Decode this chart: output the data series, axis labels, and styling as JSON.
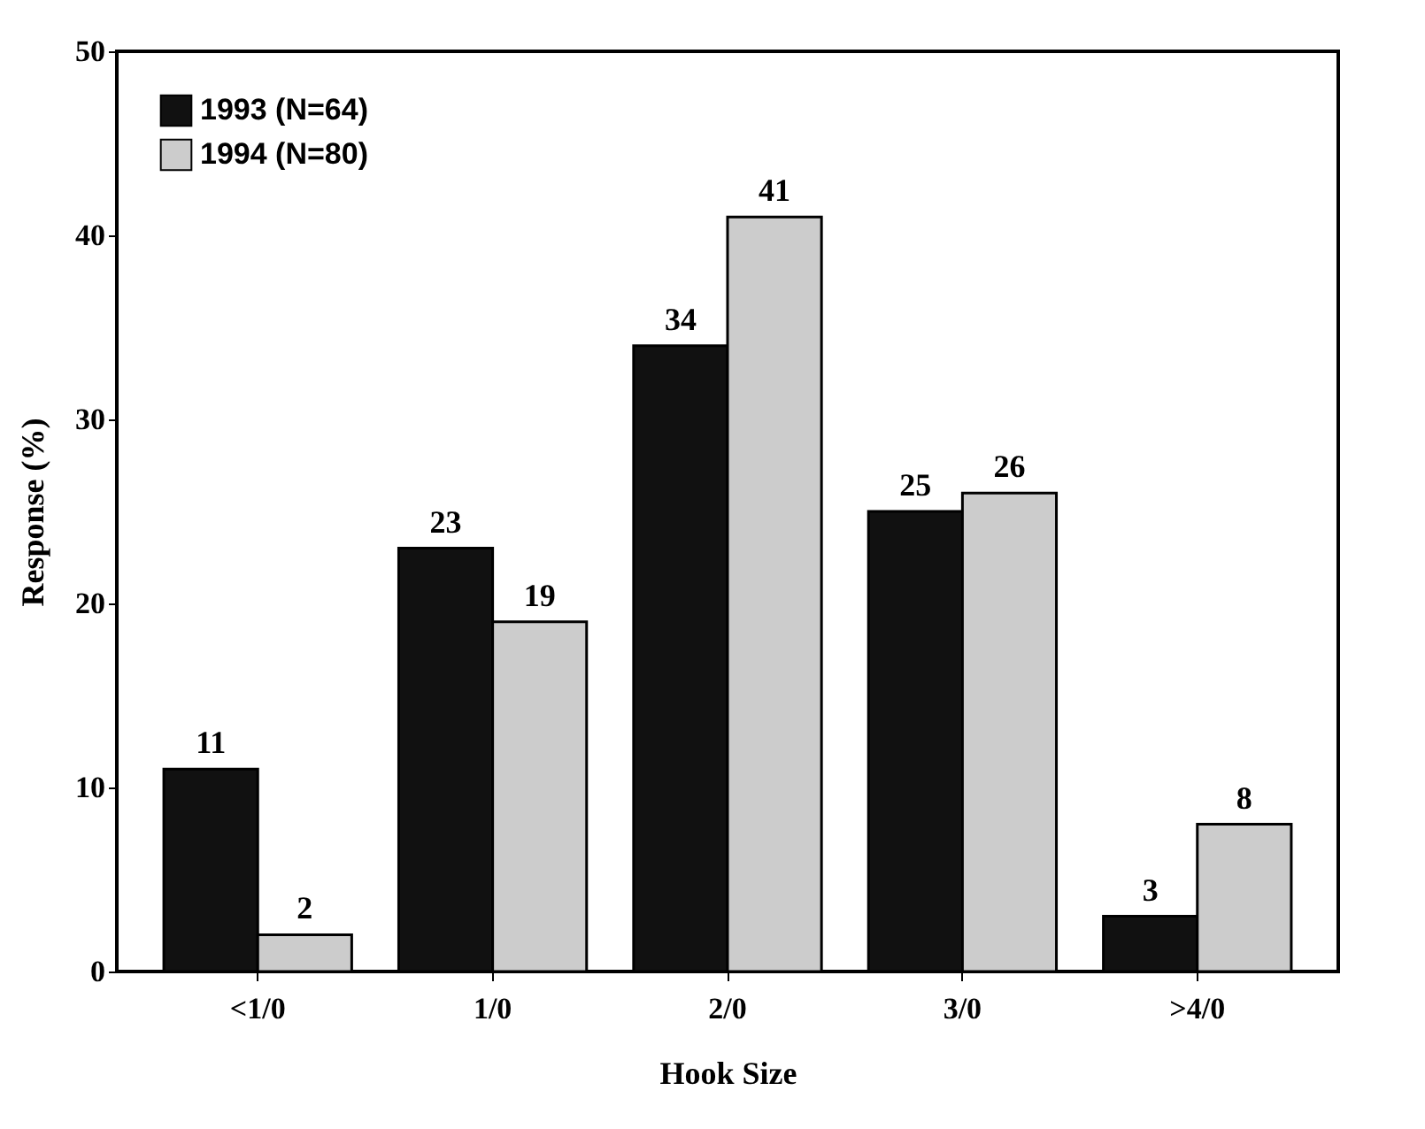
{
  "chart_data": {
    "type": "bar",
    "xlabel": "Hook Size",
    "ylabel": "Response (%)",
    "categories": [
      "<1/0",
      "1/0",
      "2/0",
      "3/0",
      ">4/0"
    ],
    "series": [
      {
        "name": "1993 (N=64)",
        "color": "#111111",
        "values": [
          11,
          23,
          34,
          25,
          3
        ]
      },
      {
        "name": "1994 (N=80)",
        "color": "#cccccc",
        "values": [
          2,
          19,
          41,
          26,
          8
        ]
      }
    ],
    "ylim": [
      0,
      50
    ],
    "yticks": [
      0,
      10,
      20,
      30,
      40,
      50
    ],
    "grid": false,
    "legend": "top left",
    "data_labels": true
  }
}
